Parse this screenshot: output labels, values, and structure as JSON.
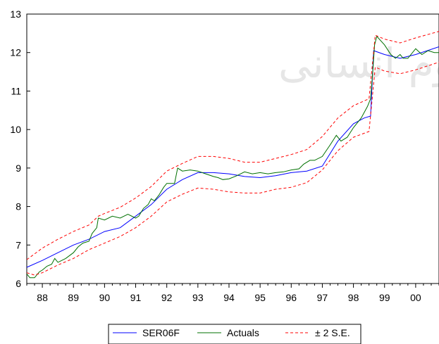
{
  "chart_data": {
    "type": "line",
    "title": "",
    "xlabel": "",
    "ylabel": "",
    "xlim": [
      1987.5,
      2000.75
    ],
    "ylim": [
      6,
      13
    ],
    "y_ticks": [
      6,
      7,
      8,
      9,
      10,
      11,
      12,
      13
    ],
    "x_tick_labels": [
      {
        "label": "88",
        "x": 1988.0
      },
      {
        "label": "89",
        "x": 1989.0
      },
      {
        "label": "90",
        "x": 1990.0
      },
      {
        "label": "91",
        "x": 1991.0
      },
      {
        "label": "92",
        "x": 1992.0
      },
      {
        "label": "93",
        "x": 1993.0
      },
      {
        "label": "94",
        "x": 1994.0
      },
      {
        "label": "95",
        "x": 1995.0
      },
      {
        "label": "96",
        "x": 1996.0
      },
      {
        "label": "97",
        "x": 1997.0
      },
      {
        "label": "98",
        "x": 1998.0
      },
      {
        "label": "99",
        "x": 1999.0
      },
      {
        "label": "00",
        "x": 2000.0
      }
    ],
    "grid": false,
    "legend_position": "bottom",
    "watermark": "اطلاعات فرهنگی علوم انسانی",
    "series": [
      {
        "name": "SER06F",
        "color": "#0000ff",
        "style": "solid",
        "points": [
          [
            1987.5,
            6.42
          ],
          [
            1988.0,
            6.6
          ],
          [
            1988.5,
            6.8
          ],
          [
            1989.0,
            7.0
          ],
          [
            1989.5,
            7.15
          ],
          [
            1990.0,
            7.35
          ],
          [
            1990.5,
            7.45
          ],
          [
            1991.0,
            7.75
          ],
          [
            1991.5,
            8.05
          ],
          [
            1992.0,
            8.45
          ],
          [
            1992.5,
            8.7
          ],
          [
            1993.0,
            8.88
          ],
          [
            1993.5,
            8.88
          ],
          [
            1994.0,
            8.85
          ],
          [
            1994.5,
            8.78
          ],
          [
            1995.0,
            8.75
          ],
          [
            1995.5,
            8.8
          ],
          [
            1996.0,
            8.88
          ],
          [
            1996.5,
            8.92
          ],
          [
            1997.0,
            9.05
          ],
          [
            1997.5,
            9.7
          ],
          [
            1998.0,
            10.15
          ],
          [
            1998.35,
            10.3
          ],
          [
            1998.55,
            10.35
          ],
          [
            1998.65,
            12.05
          ],
          [
            1999.0,
            11.95
          ],
          [
            1999.5,
            11.85
          ],
          [
            2000.0,
            11.95
          ],
          [
            2000.75,
            12.15
          ]
        ]
      },
      {
        "name": "Actuals",
        "color": "#007000",
        "style": "solid",
        "points": [
          [
            1987.5,
            6.25
          ],
          [
            1987.6,
            6.15
          ],
          [
            1987.75,
            6.15
          ],
          [
            1987.9,
            6.3
          ],
          [
            1988.0,
            6.35
          ],
          [
            1988.15,
            6.45
          ],
          [
            1988.3,
            6.5
          ],
          [
            1988.4,
            6.65
          ],
          [
            1988.5,
            6.55
          ],
          [
            1988.75,
            6.65
          ],
          [
            1989.0,
            6.8
          ],
          [
            1989.15,
            6.95
          ],
          [
            1989.3,
            7.05
          ],
          [
            1989.5,
            7.1
          ],
          [
            1989.6,
            7.3
          ],
          [
            1989.75,
            7.45
          ],
          [
            1989.8,
            7.7
          ],
          [
            1990.0,
            7.65
          ],
          [
            1990.25,
            7.75
          ],
          [
            1990.5,
            7.7
          ],
          [
            1990.75,
            7.8
          ],
          [
            1991.0,
            7.7
          ],
          [
            1991.1,
            7.75
          ],
          [
            1991.25,
            7.95
          ],
          [
            1991.4,
            8.05
          ],
          [
            1991.5,
            8.2
          ],
          [
            1991.6,
            8.15
          ],
          [
            1991.75,
            8.3
          ],
          [
            1991.9,
            8.5
          ],
          [
            1992.0,
            8.6
          ],
          [
            1992.25,
            8.6
          ],
          [
            1992.35,
            9.0
          ],
          [
            1992.5,
            8.92
          ],
          [
            1992.75,
            8.95
          ],
          [
            1993.0,
            8.92
          ],
          [
            1993.25,
            8.85
          ],
          [
            1993.5,
            8.78
          ],
          [
            1993.65,
            8.75
          ],
          [
            1993.8,
            8.7
          ],
          [
            1994.0,
            8.72
          ],
          [
            1994.25,
            8.8
          ],
          [
            1994.5,
            8.9
          ],
          [
            1994.75,
            8.85
          ],
          [
            1995.0,
            8.88
          ],
          [
            1995.25,
            8.85
          ],
          [
            1995.5,
            8.88
          ],
          [
            1995.75,
            8.9
          ],
          [
            1996.0,
            8.95
          ],
          [
            1996.25,
            8.98
          ],
          [
            1996.4,
            9.1
          ],
          [
            1996.6,
            9.2
          ],
          [
            1996.75,
            9.2
          ],
          [
            1997.0,
            9.3
          ],
          [
            1997.25,
            9.6
          ],
          [
            1997.45,
            9.85
          ],
          [
            1997.6,
            9.7
          ],
          [
            1997.8,
            9.8
          ],
          [
            1998.0,
            10.05
          ],
          [
            1998.25,
            10.3
          ],
          [
            1998.45,
            10.6
          ],
          [
            1998.55,
            10.8
          ],
          [
            1998.62,
            11.5
          ],
          [
            1998.68,
            12.2
          ],
          [
            1998.75,
            12.42
          ],
          [
            1999.0,
            12.2
          ],
          [
            1999.2,
            11.95
          ],
          [
            1999.35,
            11.85
          ],
          [
            1999.5,
            11.95
          ],
          [
            1999.6,
            11.85
          ],
          [
            1999.75,
            11.85
          ],
          [
            2000.0,
            12.1
          ],
          [
            2000.2,
            11.95
          ],
          [
            2000.4,
            12.05
          ],
          [
            2000.6,
            12.0
          ],
          [
            2000.75,
            12.0
          ]
        ]
      },
      {
        "name": "± 2 S.E.",
        "color": "#ff0000",
        "style": "dashed",
        "points": [
          [
            1987.5,
            6.62
          ],
          [
            1988.0,
            6.92
          ],
          [
            1988.5,
            7.15
          ],
          [
            1989.0,
            7.35
          ],
          [
            1989.5,
            7.52
          ],
          [
            1989.8,
            7.75
          ],
          [
            1990.0,
            7.82
          ],
          [
            1990.5,
            7.98
          ],
          [
            1991.0,
            8.22
          ],
          [
            1991.5,
            8.52
          ],
          [
            1992.0,
            8.92
          ],
          [
            1992.5,
            9.12
          ],
          [
            1993.0,
            9.3
          ],
          [
            1993.5,
            9.3
          ],
          [
            1994.0,
            9.25
          ],
          [
            1994.5,
            9.15
          ],
          [
            1995.0,
            9.15
          ],
          [
            1995.5,
            9.25
          ],
          [
            1996.0,
            9.35
          ],
          [
            1996.5,
            9.48
          ],
          [
            1997.0,
            9.82
          ],
          [
            1997.5,
            10.3
          ],
          [
            1998.0,
            10.62
          ],
          [
            1998.5,
            10.8
          ],
          [
            1998.7,
            12.45
          ],
          [
            1999.0,
            12.35
          ],
          [
            1999.5,
            12.25
          ],
          [
            2000.0,
            12.38
          ],
          [
            2000.75,
            12.55
          ]
        ]
      },
      {
        "name": "± 2 S.E.",
        "color": "#ff0000",
        "style": "dashed",
        "points": [
          [
            1987.5,
            6.28
          ],
          [
            1987.75,
            6.22
          ],
          [
            1988.0,
            6.28
          ],
          [
            1988.5,
            6.48
          ],
          [
            1989.0,
            6.65
          ],
          [
            1989.5,
            6.88
          ],
          [
            1990.0,
            7.05
          ],
          [
            1990.5,
            7.22
          ],
          [
            1991.0,
            7.45
          ],
          [
            1991.5,
            7.75
          ],
          [
            1992.0,
            8.12
          ],
          [
            1992.5,
            8.32
          ],
          [
            1993.0,
            8.48
          ],
          [
            1993.5,
            8.45
          ],
          [
            1994.0,
            8.38
          ],
          [
            1994.5,
            8.35
          ],
          [
            1995.0,
            8.35
          ],
          [
            1995.5,
            8.45
          ],
          [
            1996.0,
            8.5
          ],
          [
            1996.5,
            8.62
          ],
          [
            1997.0,
            8.95
          ],
          [
            1997.5,
            9.45
          ],
          [
            1998.0,
            9.8
          ],
          [
            1998.5,
            9.95
          ],
          [
            1998.7,
            11.62
          ],
          [
            1999.0,
            11.52
          ],
          [
            1999.5,
            11.45
          ],
          [
            2000.0,
            11.55
          ],
          [
            2000.75,
            11.75
          ]
        ]
      }
    ],
    "legend": [
      {
        "label": "SER06F",
        "color": "#0000ff",
        "style": "solid"
      },
      {
        "label": "Actuals",
        "color": "#007000",
        "style": "solid"
      },
      {
        "label": "± 2 S.E.",
        "color": "#ff0000",
        "style": "dashed"
      }
    ]
  }
}
